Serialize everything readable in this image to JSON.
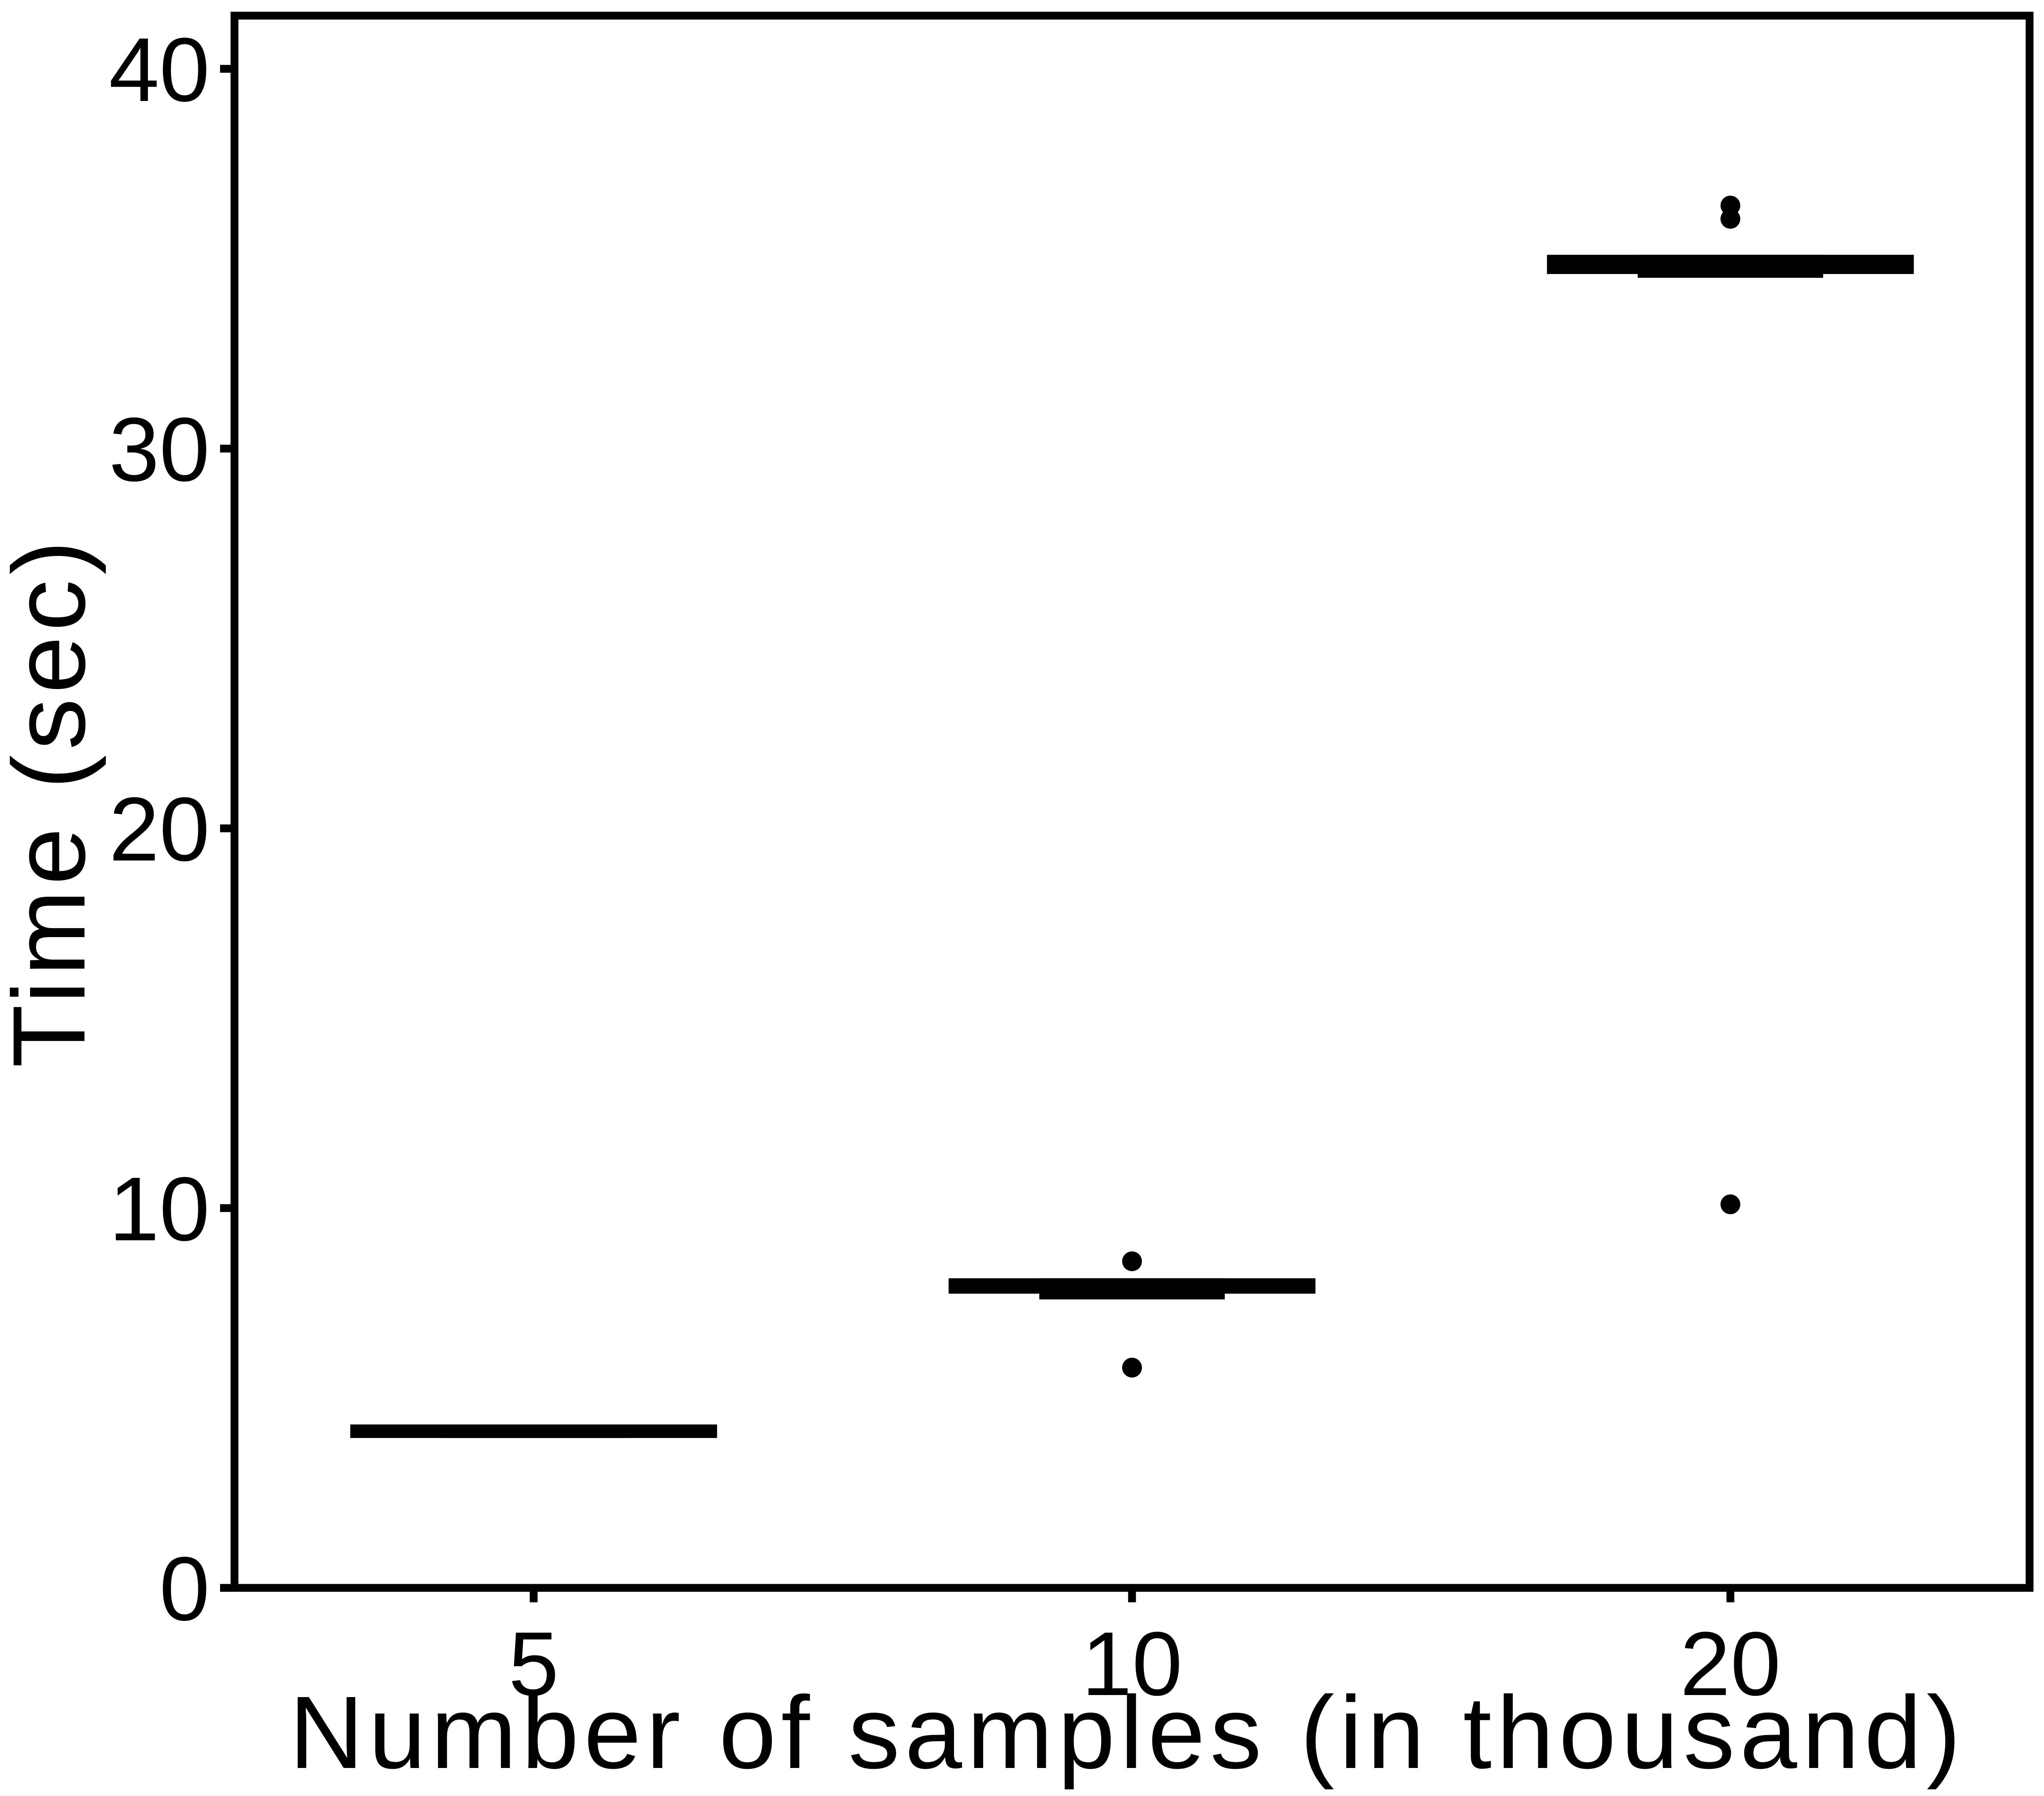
{
  "chart_data": {
    "type": "box",
    "x_label": "Number of samples (in thousand)",
    "y_label": "Time (sec)",
    "categories": [
      "5",
      "10",
      "20"
    ],
    "whislo": [
      4.05,
      7.7,
      34.6
    ],
    "q1": [
      4.05,
      7.85,
      34.7
    ],
    "median": [
      4.1,
      8.0,
      34.82
    ],
    "q3": [
      4.2,
      8.05,
      35.0
    ],
    "whishi": [
      4.2,
      8.05,
      35.0
    ],
    "outliers": [
      [],
      [
        8.6,
        5.8
      ],
      [
        36.05,
        36.4,
        10.1
      ]
    ],
    "color": "#000000",
    "ylim": [
      0,
      41.4
    ],
    "yticks": [
      0,
      10,
      20,
      30,
      40
    ]
  }
}
